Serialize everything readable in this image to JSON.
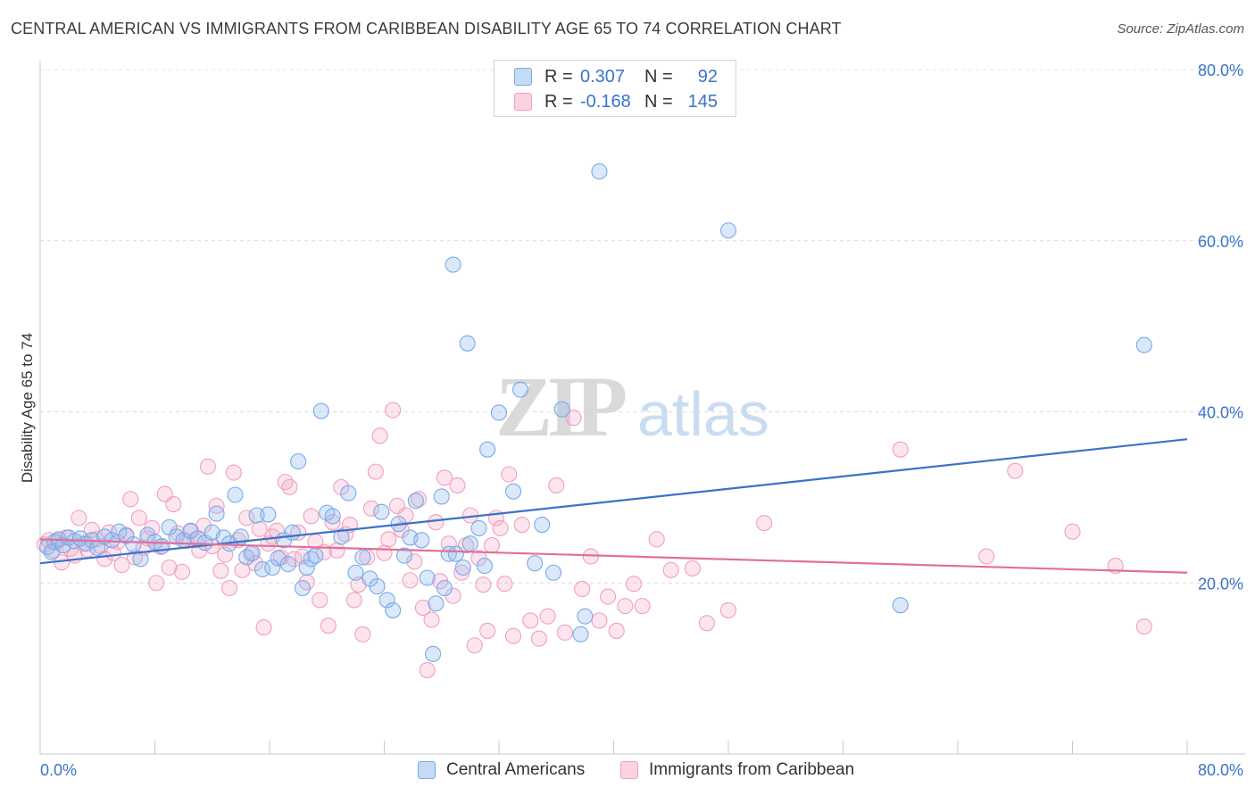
{
  "header": {
    "title": "CENTRAL AMERICAN VS IMMIGRANTS FROM CARIBBEAN DISABILITY AGE 65 TO 74 CORRELATION CHART",
    "source": "Source: ZipAtlas.com"
  },
  "watermark": {
    "zip": "ZIP",
    "atlas": "atlas"
  },
  "legend": {
    "series1": {
      "r_label": "R =",
      "r_value": "0.307",
      "n_label": "N =",
      "n_value": "92",
      "color": "#7aaae8"
    },
    "series2": {
      "r_label": "R =",
      "r_value": "-0.168",
      "n_label": "N =",
      "n_value": "145",
      "color": "#f0a0bc"
    }
  },
  "bottom_legend": {
    "series1": "Central Americans",
    "series2": "Immigrants from Caribbean"
  },
  "chart_data": {
    "type": "scatter",
    "title": "CENTRAL AMERICAN VS IMMIGRANTS FROM CARIBBEAN DISABILITY AGE 65 TO 74 CORRELATION CHART",
    "xlabel": "",
    "ylabel": "Disability Age 65 to 74",
    "xlim": [
      0,
      80
    ],
    "ylim": [
      0,
      80
    ],
    "x_tick_labels": [
      "0.0%",
      "80.0%"
    ],
    "y_ticks": [
      20,
      40,
      60,
      80
    ],
    "y_tick_labels": [
      "20.0%",
      "40.0%",
      "60.0%",
      "80.0%"
    ],
    "grid": true,
    "series": [
      {
        "name": "Central Americans",
        "color": "#7aaae8",
        "line_color": "#3b72c9",
        "trend": [
          [
            0,
            22.3
          ],
          [
            80,
            36.8
          ]
        ],
        "points": [
          [
            0.5,
            24.2
          ],
          [
            0.8,
            23.6
          ],
          [
            1.0,
            24.8
          ],
          [
            1.3,
            25.1
          ],
          [
            1.6,
            24.4
          ],
          [
            2.0,
            25.3
          ],
          [
            2.4,
            24.9
          ],
          [
            2.8,
            25.2
          ],
          [
            3.2,
            24.6
          ],
          [
            3.6,
            25.0
          ],
          [
            4.0,
            24.1
          ],
          [
            4.5,
            25.4
          ],
          [
            5.0,
            25.0
          ],
          [
            5.5,
            26.0
          ],
          [
            6.0,
            25.5
          ],
          [
            6.5,
            24.5
          ],
          [
            7.0,
            22.8
          ],
          [
            7.5,
            25.6
          ],
          [
            8.0,
            24.8
          ],
          [
            8.5,
            24.3
          ],
          [
            9.0,
            26.5
          ],
          [
            9.5,
            25.4
          ],
          [
            10.0,
            25.0
          ],
          [
            10.5,
            26.1
          ],
          [
            11.0,
            25.2
          ],
          [
            11.5,
            24.7
          ],
          [
            12.0,
            25.9
          ],
          [
            12.3,
            28.1
          ],
          [
            12.8,
            25.3
          ],
          [
            13.2,
            24.6
          ],
          [
            13.6,
            30.3
          ],
          [
            14.0,
            25.4
          ],
          [
            14.4,
            23.0
          ],
          [
            14.8,
            23.5
          ],
          [
            15.1,
            27.9
          ],
          [
            15.5,
            21.6
          ],
          [
            15.9,
            28.0
          ],
          [
            16.2,
            21.8
          ],
          [
            16.6,
            22.9
          ],
          [
            17.0,
            25.0
          ],
          [
            17.3,
            22.2
          ],
          [
            17.6,
            25.9
          ],
          [
            18.0,
            34.2
          ],
          [
            18.3,
            19.4
          ],
          [
            18.6,
            21.8
          ],
          [
            18.9,
            22.8
          ],
          [
            19.2,
            23.2
          ],
          [
            19.6,
            40.1
          ],
          [
            20.0,
            28.2
          ],
          [
            20.4,
            27.8
          ],
          [
            21.0,
            25.4
          ],
          [
            21.5,
            30.5
          ],
          [
            22.0,
            21.2
          ],
          [
            22.5,
            23.0
          ],
          [
            23.0,
            20.5
          ],
          [
            23.5,
            19.6
          ],
          [
            23.8,
            28.3
          ],
          [
            24.2,
            18.0
          ],
          [
            24.6,
            16.8
          ],
          [
            25.0,
            26.9
          ],
          [
            25.4,
            23.2
          ],
          [
            25.8,
            25.3
          ],
          [
            26.2,
            29.6
          ],
          [
            26.6,
            25.0
          ],
          [
            27.0,
            20.6
          ],
          [
            27.4,
            11.7
          ],
          [
            27.6,
            17.6
          ],
          [
            28.0,
            30.1
          ],
          [
            28.2,
            19.4
          ],
          [
            28.5,
            23.4
          ],
          [
            28.8,
            57.2
          ],
          [
            29.0,
            23.4
          ],
          [
            29.5,
            21.8
          ],
          [
            29.8,
            48.0
          ],
          [
            30.0,
            24.6
          ],
          [
            30.6,
            26.4
          ],
          [
            31.0,
            22.0
          ],
          [
            31.2,
            35.6
          ],
          [
            32.0,
            39.9
          ],
          [
            33.0,
            30.7
          ],
          [
            33.5,
            42.6
          ],
          [
            34.5,
            22.3
          ],
          [
            35.0,
            26.8
          ],
          [
            35.8,
            21.2
          ],
          [
            36.4,
            40.3
          ],
          [
            37.7,
            14.0
          ],
          [
            38.0,
            16.1
          ],
          [
            39.0,
            68.1
          ],
          [
            48.0,
            61.2
          ],
          [
            60.0,
            17.4
          ],
          [
            77.0,
            47.8
          ]
        ]
      },
      {
        "name": "Immigrants from Caribbean",
        "color": "#f0a0bc",
        "line_color": "#e0709a",
        "trend": [
          [
            0,
            25.1
          ],
          [
            80,
            21.2
          ]
        ],
        "points": [
          [
            0.3,
            24.5
          ],
          [
            0.6,
            25.0
          ],
          [
            0.9,
            23.8
          ],
          [
            1.2,
            24.9
          ],
          [
            1.5,
            22.4
          ],
          [
            1.8,
            25.3
          ],
          [
            2.1,
            24.0
          ],
          [
            2.4,
            23.2
          ],
          [
            2.7,
            27.6
          ],
          [
            3.0,
            24.6
          ],
          [
            3.3,
            23.9
          ],
          [
            3.6,
            26.2
          ],
          [
            3.9,
            25.1
          ],
          [
            4.2,
            24.3
          ],
          [
            4.5,
            22.8
          ],
          [
            4.8,
            25.9
          ],
          [
            5.1,
            23.5
          ],
          [
            5.4,
            24.8
          ],
          [
            5.7,
            22.1
          ],
          [
            6.0,
            25.6
          ],
          [
            6.3,
            29.8
          ],
          [
            6.6,
            23.0
          ],
          [
            6.9,
            27.6
          ],
          [
            7.2,
            24.1
          ],
          [
            7.5,
            25.2
          ],
          [
            7.8,
            26.4
          ],
          [
            8.1,
            20.0
          ],
          [
            8.4,
            24.2
          ],
          [
            8.7,
            30.4
          ],
          [
            9.0,
            21.8
          ],
          [
            9.3,
            29.2
          ],
          [
            9.6,
            25.8
          ],
          [
            9.9,
            21.3
          ],
          [
            10.2,
            24.9
          ],
          [
            10.5,
            26.0
          ],
          [
            10.8,
            25.0
          ],
          [
            11.1,
            23.8
          ],
          [
            11.4,
            26.7
          ],
          [
            11.7,
            33.6
          ],
          [
            12.0,
            24.3
          ],
          [
            12.3,
            29.0
          ],
          [
            12.6,
            21.4
          ],
          [
            12.9,
            23.3
          ],
          [
            13.2,
            19.4
          ],
          [
            13.5,
            32.9
          ],
          [
            13.8,
            25.0
          ],
          [
            14.1,
            21.5
          ],
          [
            14.4,
            27.6
          ],
          [
            14.7,
            23.4
          ],
          [
            15.0,
            22.3
          ],
          [
            15.3,
            26.3
          ],
          [
            15.6,
            14.8
          ],
          [
            15.9,
            24.6
          ],
          [
            16.2,
            25.4
          ],
          [
            16.5,
            26.1
          ],
          [
            16.8,
            23.0
          ],
          [
            17.1,
            31.8
          ],
          [
            17.4,
            31.2
          ],
          [
            17.7,
            22.8
          ],
          [
            18.0,
            25.9
          ],
          [
            18.3,
            23.1
          ],
          [
            18.6,
            20.1
          ],
          [
            18.9,
            27.8
          ],
          [
            19.2,
            24.8
          ],
          [
            19.5,
            18.0
          ],
          [
            19.8,
            23.6
          ],
          [
            20.1,
            15.0
          ],
          [
            20.4,
            27.1
          ],
          [
            20.7,
            23.8
          ],
          [
            21.0,
            31.2
          ],
          [
            21.3,
            25.7
          ],
          [
            21.6,
            26.8
          ],
          [
            21.9,
            18.0
          ],
          [
            22.2,
            19.8
          ],
          [
            22.5,
            14.0
          ],
          [
            22.8,
            23.0
          ],
          [
            23.1,
            28.7
          ],
          [
            23.4,
            33.0
          ],
          [
            23.7,
            37.2
          ],
          [
            24.0,
            23.5
          ],
          [
            24.3,
            25.1
          ],
          [
            24.6,
            40.2
          ],
          [
            24.9,
            29.0
          ],
          [
            25.2,
            26.2
          ],
          [
            25.5,
            27.9
          ],
          [
            25.8,
            20.3
          ],
          [
            26.1,
            22.5
          ],
          [
            26.4,
            29.8
          ],
          [
            26.7,
            17.1
          ],
          [
            27.0,
            9.8
          ],
          [
            27.3,
            15.7
          ],
          [
            27.6,
            27.1
          ],
          [
            27.9,
            20.2
          ],
          [
            28.2,
            32.3
          ],
          [
            28.5,
            24.6
          ],
          [
            28.8,
            18.5
          ],
          [
            29.1,
            31.4
          ],
          [
            29.4,
            21.2
          ],
          [
            29.7,
            24.4
          ],
          [
            30.0,
            27.9
          ],
          [
            30.3,
            12.7
          ],
          [
            30.6,
            22.9
          ],
          [
            30.9,
            19.8
          ],
          [
            31.2,
            14.4
          ],
          [
            31.5,
            24.4
          ],
          [
            31.8,
            27.6
          ],
          [
            32.1,
            26.4
          ],
          [
            32.4,
            19.9
          ],
          [
            32.7,
            32.7
          ],
          [
            33.0,
            13.8
          ],
          [
            33.6,
            26.8
          ],
          [
            34.2,
            15.6
          ],
          [
            34.8,
            13.5
          ],
          [
            35.4,
            16.1
          ],
          [
            36.0,
            31.4
          ],
          [
            36.6,
            14.2
          ],
          [
            37.2,
            39.3
          ],
          [
            37.8,
            19.3
          ],
          [
            38.4,
            23.1
          ],
          [
            39.0,
            15.6
          ],
          [
            39.6,
            18.4
          ],
          [
            40.2,
            14.4
          ],
          [
            40.8,
            17.3
          ],
          [
            41.4,
            19.9
          ],
          [
            42.0,
            17.3
          ],
          [
            43.0,
            25.1
          ],
          [
            44.0,
            21.5
          ],
          [
            45.5,
            21.7
          ],
          [
            46.5,
            15.3
          ],
          [
            48.0,
            16.8
          ],
          [
            50.5,
            27.0
          ],
          [
            60.0,
            35.6
          ],
          [
            66.0,
            23.1
          ],
          [
            68.0,
            33.1
          ],
          [
            72.0,
            26.0
          ],
          [
            75.0,
            22.0
          ],
          [
            77.0,
            14.9
          ]
        ]
      }
    ]
  }
}
